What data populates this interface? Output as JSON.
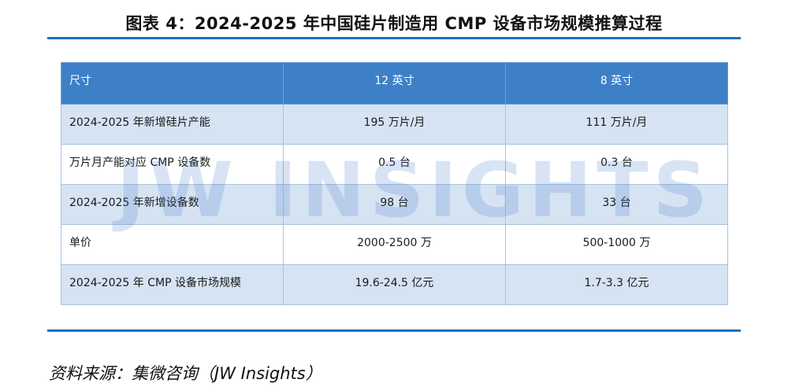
{
  "title": "图表 4：2024-2025 年中国硅片制造用 CMP 设备市场规模推算过程",
  "table": {
    "headers": [
      "尺寸",
      "12 英寸",
      "8 英寸"
    ],
    "rows": [
      [
        "2024-2025 年新增硅片产能",
        "195 万片/月",
        "111 万片/月"
      ],
      [
        "万片月产能对应 CMP 设备数",
        "0.5 台",
        "0.3 台"
      ],
      [
        "2024-2025 年新增设备数",
        "98 台",
        "33 台"
      ],
      [
        "单价",
        "2000-2500 万",
        "500-1000 万"
      ],
      [
        "2024-2025 年 CMP 设备市场规模",
        "19.6-24.5 亿元",
        "1.7-3.3 亿元"
      ]
    ]
  },
  "watermark": "JW INSIGHTS",
  "source": "资料来源：集微咨询（JW Insights）",
  "colors": {
    "accent": "#1f6fbf",
    "header_bg": "#3d80c8",
    "row_band": "#d6e3f3"
  }
}
